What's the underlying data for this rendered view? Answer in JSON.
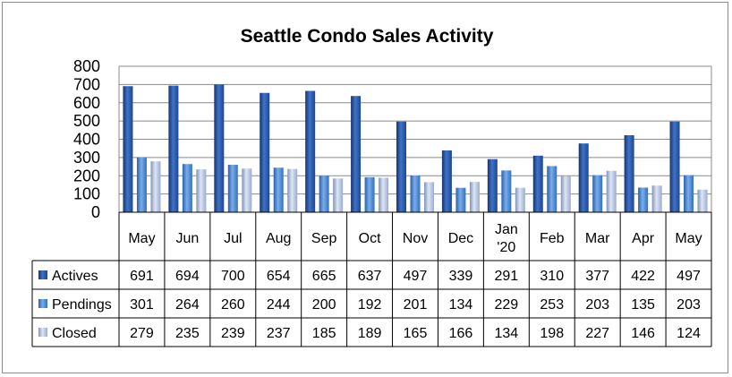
{
  "chart_data": {
    "type": "bar",
    "title": "Seattle Condo Sales Activity",
    "categories": [
      [
        "May"
      ],
      [
        "Jun"
      ],
      [
        "Jul"
      ],
      [
        "Aug"
      ],
      [
        "Sep"
      ],
      [
        "Oct"
      ],
      [
        "Nov"
      ],
      [
        "Dec"
      ],
      [
        "Jan",
        "'20"
      ],
      [
        "Feb"
      ],
      [
        "Mar"
      ],
      [
        "Apr"
      ],
      [
        "May"
      ]
    ],
    "series": [
      {
        "name": "Actives",
        "color": "#1f4e9a",
        "values": [
          691,
          694,
          700,
          654,
          665,
          637,
          497,
          339,
          291,
          310,
          377,
          422,
          497
        ]
      },
      {
        "name": "Pendings",
        "color": "#3a7cd0",
        "values": [
          301,
          264,
          260,
          244,
          200,
          192,
          201,
          134,
          229,
          253,
          203,
          135,
          203
        ]
      },
      {
        "name": "Closed",
        "color": "#a9b8d6",
        "values": [
          279,
          235,
          239,
          237,
          185,
          189,
          165,
          166,
          134,
          198,
          227,
          146,
          124
        ]
      }
    ],
    "ylim": [
      0,
      800
    ],
    "yticks": [
      0,
      100,
      200,
      300,
      400,
      500,
      600,
      700,
      800
    ],
    "grid": true,
    "legend": "data-table"
  }
}
